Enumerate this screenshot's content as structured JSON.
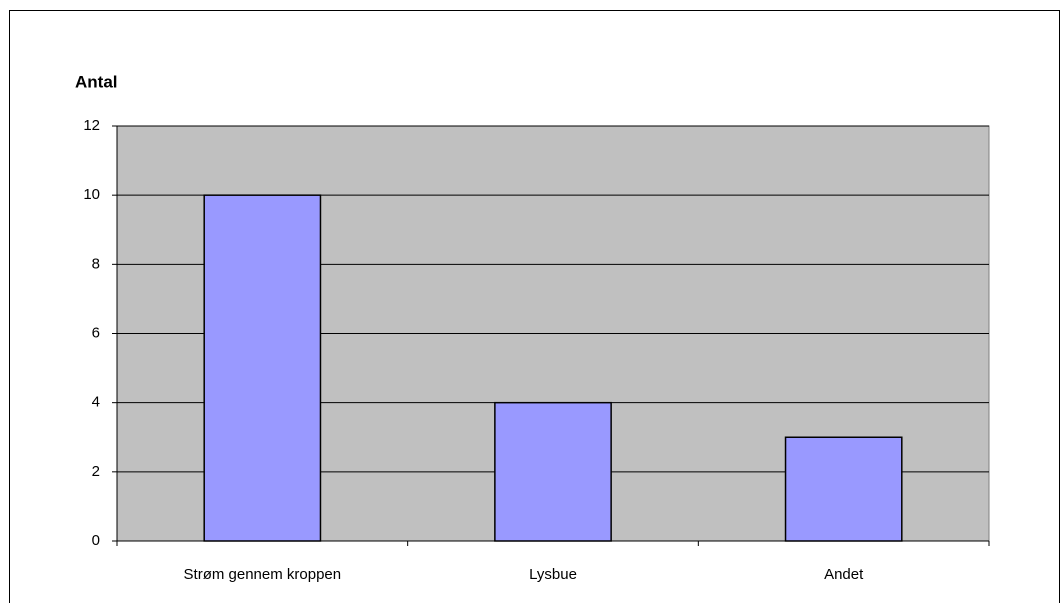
{
  "chart_data": {
    "type": "bar",
    "y_label": "Antal",
    "categories": [
      "Strøm gennem kroppen",
      "Lysbue",
      "Andet"
    ],
    "values": [
      10,
      4,
      3
    ],
    "color": "#9999ff",
    "plot_background": "#c0c0c0",
    "ylim": [
      0,
      12
    ],
    "yticks": [
      0,
      2,
      4,
      6,
      8,
      10,
      12
    ],
    "grid": true
  }
}
